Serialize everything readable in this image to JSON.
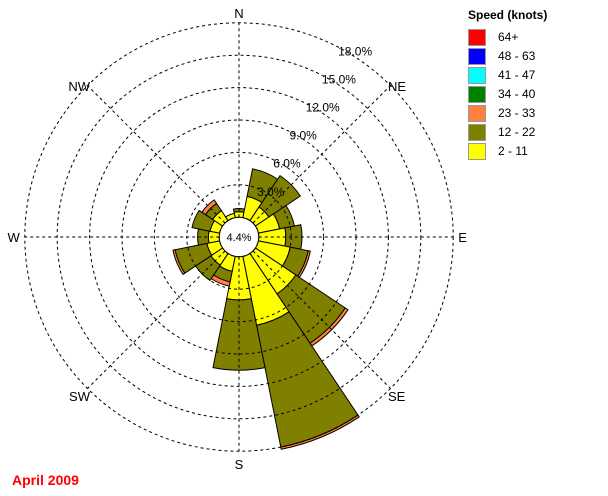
{
  "chart_data": {
    "type": "windrose",
    "title": "",
    "footer": "April 2009",
    "legend_title": "Speed (knots)",
    "legend_placement": "top-right",
    "speed_bins": [
      {
        "label": "2 - 11",
        "color": "#ffff00"
      },
      {
        "label": "12 - 22",
        "color": "#808000"
      },
      {
        "label": "23 - 33",
        "color": "#ff8040"
      },
      {
        "label": "34 - 40",
        "color": "#008000"
      },
      {
        "label": "41 - 47",
        "color": "#00ffff"
      },
      {
        "label": "48 - 63",
        "color": "#0000ff"
      },
      {
        "label": "64+",
        "color": "#ff0000"
      }
    ],
    "directions": [
      {
        "label": "N",
        "angle": 0
      },
      {
        "label": "NE",
        "angle": 45
      },
      {
        "label": "E",
        "angle": 90
      },
      {
        "label": "SE",
        "angle": 135
      },
      {
        "label": "S",
        "angle": 180
      },
      {
        "label": "SW",
        "angle": 225
      },
      {
        "label": "W",
        "angle": 270
      },
      {
        "label": "NW",
        "angle": 315
      }
    ],
    "ring_labels": [
      "3.0%",
      "6.0%",
      "9.0%",
      "12.0%",
      "15.0%",
      "18.0%"
    ],
    "ring_values": [
      3,
      6,
      9,
      12,
      15,
      18
    ],
    "calm_label": "4.4%",
    "calm_percent": 4.4,
    "sectors": [
      {
        "dir": 0.0,
        "values": [
          0.5,
          0.3,
          0.0
        ]
      },
      {
        "dir": 22.5,
        "values": [
          2.0,
          2.6,
          0.0
        ]
      },
      {
        "dir": 45.0,
        "values": [
          1.5,
          3.5,
          0.0
        ]
      },
      {
        "dir": 67.5,
        "values": [
          2.0,
          1.4,
          0.0
        ]
      },
      {
        "dir": 90.0,
        "values": [
          2.5,
          1.5,
          0.0
        ]
      },
      {
        "dir": 112.5,
        "values": [
          3.0,
          1.7,
          0.2
        ]
      },
      {
        "dir": 135.0,
        "values": [
          4.5,
          5.5,
          0.3
        ]
      },
      {
        "dir": 157.5,
        "values": [
          6.5,
          11.5,
          0.2
        ]
      },
      {
        "dir": 180.0,
        "values": [
          4.0,
          6.5,
          0.0
        ]
      },
      {
        "dir": 202.5,
        "values": [
          1.4,
          1.0,
          0.4
        ]
      },
      {
        "dir": 225.0,
        "values": [
          1.3,
          1.7,
          0.0
        ]
      },
      {
        "dir": 247.5,
        "values": [
          1.2,
          3.0,
          0.2
        ]
      },
      {
        "dir": 270.0,
        "values": [
          1.0,
          1.0,
          0.0
        ]
      },
      {
        "dir": 292.5,
        "values": [
          0.9,
          1.7,
          0.0
        ]
      },
      {
        "dir": 315.0,
        "values": [
          1.1,
          0.8,
          0.4
        ]
      },
      {
        "dir": 337.5,
        "values": [
          0.4,
          0.0,
          0.0
        ]
      }
    ]
  }
}
